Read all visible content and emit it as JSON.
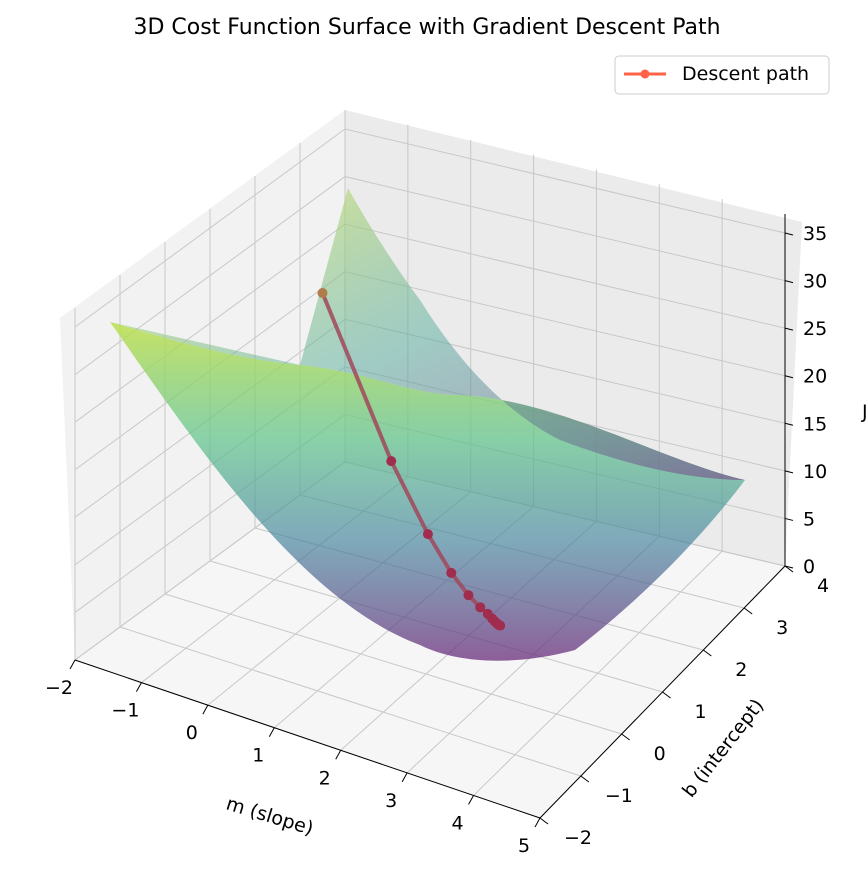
{
  "chart_data": {
    "type": "surface3d",
    "title": "3D Cost Function Surface with Gradient Descent Path",
    "xlabel": "m (slope)",
    "ylabel": "b (intercept)",
    "zlabel": "J",
    "xlim": [
      -2,
      5
    ],
    "ylim": [
      -2,
      4
    ],
    "zlim": [
      0,
      37
    ],
    "x_ticks": [
      -2,
      -1,
      0,
      1,
      2,
      3,
      4,
      5
    ],
    "x_tick_labels": [
      "−2",
      "−1",
      "0",
      "1",
      "2",
      "3",
      "4",
      "5"
    ],
    "y_ticks": [
      -2,
      -1,
      0,
      1,
      2,
      3,
      4
    ],
    "y_tick_labels": [
      "−2",
      "−1",
      "0",
      "1",
      "2",
      "3",
      "4"
    ],
    "z_ticks": [
      0,
      5,
      10,
      15,
      20,
      25,
      30,
      35
    ],
    "z_tick_labels": [
      "0",
      "5",
      "10",
      "15",
      "20",
      "25",
      "30",
      "35"
    ],
    "surface_colormap": "viridis",
    "surface_alpha": 0.6,
    "grid": true,
    "series": [
      {
        "name": "Descent path",
        "color": "#ff6347",
        "marker": "circle",
        "m": [
          -2.0,
          -0.25,
          0.7,
          1.3,
          1.7,
          1.95,
          2.1,
          2.2,
          2.26,
          2.3,
          2.33,
          2.35,
          2.37
        ],
        "b": [
          3.5,
          2.55,
          2.0,
          1.65,
          1.45,
          1.35,
          1.3,
          1.25,
          1.22,
          1.2,
          1.19,
          1.18,
          1.18
        ],
        "J": [
          19.5,
          8.2,
          4.3,
          2.7,
          1.9,
          1.5,
          1.3,
          1.2,
          1.15,
          1.12,
          1.1,
          1.09,
          1.08
        ]
      }
    ],
    "legend": {
      "position": "top-right",
      "entries": [
        "Descent path"
      ]
    }
  }
}
